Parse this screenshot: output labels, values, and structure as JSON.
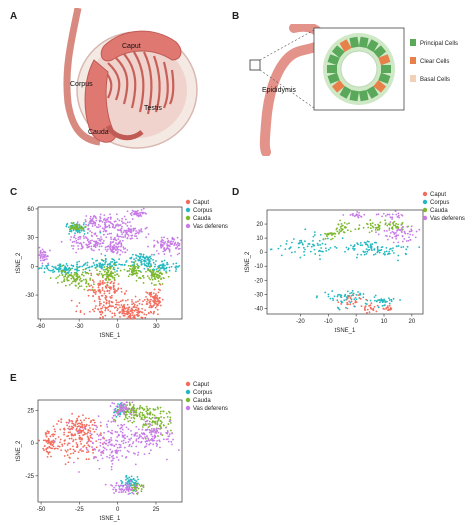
{
  "panels": {
    "A": "A",
    "B": "B",
    "C": "C",
    "D": "D",
    "E": "E"
  },
  "panel_a": {
    "labels": {
      "caput": "Caput",
      "corpus": "Corpus",
      "testis": "Testis",
      "cauda": "Cauda"
    }
  },
  "panel_b": {
    "epididymis_label": "Epididymis",
    "legend": [
      {
        "label": "Principal Cells",
        "color": "#5aa85a"
      },
      {
        "label": "Clear Cells",
        "color": "#e8804a"
      },
      {
        "label": "Basal Cells",
        "color": "#f2d1b8"
      }
    ]
  },
  "colors": {
    "Caput": "#f26b5b",
    "Corpus": "#22b8c0",
    "Cauda": "#7cb82c",
    "Vas deferens": "#c77be6"
  },
  "chart_data": [
    {
      "type": "scatter",
      "panel": "C",
      "xlabel": "tSNE_1",
      "ylabel": "tSNE_2",
      "xticks": [
        -60,
        -30,
        0,
        30
      ],
      "yticks": [
        -30,
        0,
        30,
        60
      ],
      "xlim": [
        -62,
        50
      ],
      "ylim": [
        -55,
        62
      ],
      "legend_position": "top-right",
      "series": [
        {
          "name": "Caput",
          "clusters": [
            [
              -2,
              -42,
              12,
              7
            ],
            [
              12,
              -50,
              6,
              4
            ],
            [
              -10,
              -22,
              6,
              5
            ],
            [
              28,
              -35,
              4,
              6
            ]
          ]
        },
        {
          "name": "Corpus",
          "clusters": [
            [
              -45,
              -2,
              9,
              3
            ],
            [
              -12,
              2,
              10,
              3
            ],
            [
              32,
              0,
              8,
              3
            ],
            [
              -32,
              40,
              4,
              3
            ],
            [
              18,
              8,
              4,
              3
            ]
          ]
        },
        {
          "name": "Cauda",
          "clusters": [
            [
              -32,
              -12,
              8,
              5
            ],
            [
              -6,
              -8,
              4,
              4
            ],
            [
              28,
              -10,
              5,
              4
            ],
            [
              12,
              -4,
              3,
              3
            ],
            [
              -32,
              40,
              3,
              2
            ]
          ]
        },
        {
          "name": "Vas deferens",
          "clusters": [
            [
              -12,
              45,
              8,
              5
            ],
            [
              -20,
              25,
              9,
              5
            ],
            [
              8,
              36,
              6,
              5
            ],
            [
              40,
              22,
              7,
              5
            ],
            [
              -58,
              12,
              2,
              3
            ],
            [
              15,
              55,
              3,
              2
            ],
            [
              -2,
              20,
              4,
              4
            ]
          ]
        }
      ]
    },
    {
      "type": "scatter",
      "panel": "D",
      "xlabel": "tSNE_1",
      "ylabel": "tSNE_2",
      "xticks": [
        -20,
        -10,
        0,
        10,
        20
      ],
      "yticks": [
        -40,
        -30,
        -20,
        -10,
        0,
        10,
        20
      ],
      "xlim": [
        -32,
        24
      ],
      "ylim": [
        -44,
        30
      ],
      "legend_position": "top-right",
      "series": [
        {
          "name": "Caput",
          "clusters": [
            [
              -1,
              -35,
              2,
              2
            ],
            [
              5,
              -40,
              1.5,
              1.5
            ],
            [
              11,
              -40,
              1,
              1
            ]
          ]
        },
        {
          "name": "Corpus",
          "clusters": [
            [
              -18,
              4,
              6,
              4
            ],
            [
              -4,
              -32,
              4,
              3
            ],
            [
              9,
              -35,
              3,
              2
            ],
            [
              8,
              1,
              6,
              2.5
            ],
            [
              4,
              5,
              2,
              2
            ]
          ]
        },
        {
          "name": "Cauda",
          "clusters": [
            [
              -5,
              17,
              2,
              2
            ],
            [
              6,
              18,
              2.5,
              2
            ],
            [
              14,
              19,
              2,
              2
            ],
            [
              -10,
              12,
              1.5,
              1.5
            ]
          ]
        },
        {
          "name": "Vas deferens",
          "clusters": [
            [
              16,
              13,
              4,
              4
            ],
            [
              12,
              26,
              2,
              1
            ],
            [
              -1,
              26,
              1.5,
              1
            ]
          ]
        }
      ]
    },
    {
      "type": "scatter",
      "panel": "E",
      "xlabel": "tSNE_1",
      "ylabel": "tSNE_2",
      "xticks": [
        -50,
        -25,
        0,
        25
      ],
      "yticks": [
        -25,
        0,
        25
      ],
      "xlim": [
        -52,
        42
      ],
      "ylim": [
        -45,
        33
      ],
      "legend_position": "top-right",
      "series": [
        {
          "name": "Caput",
          "clusters": [
            [
              -28,
              3,
              8,
              8
            ],
            [
              -45,
              0,
              2,
              5
            ],
            [
              -24,
              15,
              4,
              3
            ]
          ]
        },
        {
          "name": "Corpus",
          "clusters": [
            [
              8,
              -30,
              3,
              3
            ],
            [
              2,
              26,
              2,
              2
            ]
          ]
        },
        {
          "name": "Cauda",
          "clusters": [
            [
              10,
              25,
              6,
              4
            ],
            [
              25,
              18,
              6,
              5
            ],
            [
              12,
              -35,
              2,
              2
            ]
          ]
        },
        {
          "name": "Vas deferens",
          "clusters": [
            [
              -2,
              0,
              12,
              9
            ],
            [
              22,
              6,
              7,
              5
            ],
            [
              4,
              -35,
              5,
              2
            ],
            [
              2,
              26,
              3,
              3
            ]
          ]
        }
      ]
    }
  ]
}
